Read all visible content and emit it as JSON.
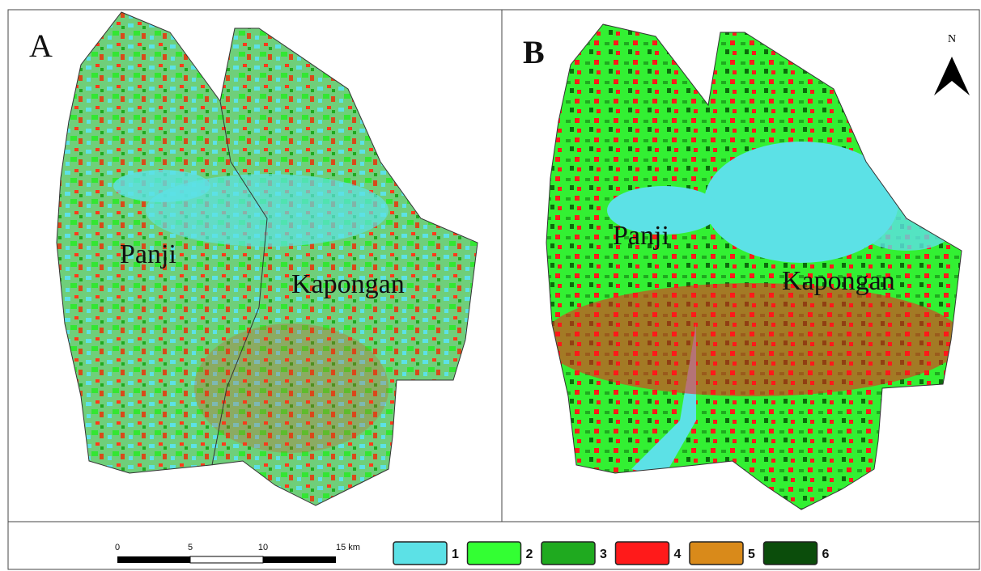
{
  "panels": [
    {
      "label": "A",
      "regions": [
        "Panji",
        "Kapongan"
      ]
    },
    {
      "label": "B",
      "regions": [
        "Panji",
        "Kapongan"
      ],
      "north": "N"
    }
  ],
  "scale_bar": {
    "ticks": [
      "0",
      "5",
      "10",
      "15 km"
    ]
  },
  "legend": [
    {
      "label": "1",
      "color": "#5ce1e6"
    },
    {
      "label": "2",
      "color": "#33ff33"
    },
    {
      "label": "3",
      "color": "#1faa1f"
    },
    {
      "label": "4",
      "color": "#ff1a1a"
    },
    {
      "label": "5",
      "color": "#d98a1a"
    },
    {
      "label": "6",
      "color": "#0b4d0b"
    }
  ]
}
